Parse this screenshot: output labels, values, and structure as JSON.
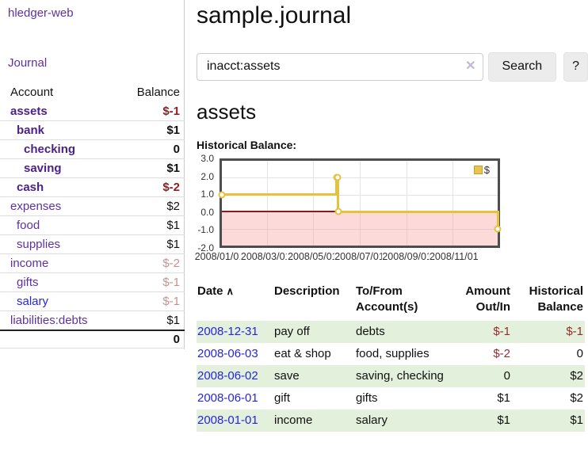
{
  "colors": {
    "link_purple": "#5e31a1",
    "link_purple_bold": "#4c2189",
    "link_blue": "#2626dd",
    "negative_strong": "#8f1f1f",
    "negative_table": "#942d2d",
    "negative_faded": "#c79090",
    "row_green": "#e2f0dc",
    "series_gold": "#e6c13c",
    "negative_region_pink": "#fbdbd9",
    "zero_line_red": "#8b1c1c",
    "chart_border": "#4d4d4d"
  },
  "sidebar": {
    "app_title": "hledger-web",
    "nav": [
      {
        "label": "Journal"
      }
    ],
    "accounts_table": {
      "headers": {
        "account": "Account",
        "balance": "Balance"
      },
      "rows": [
        {
          "name": "assets",
          "balance": "$-1",
          "indent": 1,
          "bold": true,
          "balance_style": "neg-strong"
        },
        {
          "name": "bank",
          "balance": "$1",
          "indent": 2,
          "bold": true,
          "balance_style": "pos"
        },
        {
          "name": "checking",
          "balance": "0",
          "indent": 3,
          "bold": true,
          "balance_style": "pos"
        },
        {
          "name": "saving",
          "balance": "$1",
          "indent": 3,
          "bold": true,
          "balance_style": "pos"
        },
        {
          "name": "cash",
          "balance": "$-2",
          "indent": 2,
          "bold": true,
          "balance_style": "neg-strong"
        },
        {
          "name": "expenses",
          "balance": "$2",
          "indent": 1,
          "bold": false,
          "balance_style": "pos"
        },
        {
          "name": "food",
          "balance": "$1",
          "indent": 2,
          "bold": false,
          "balance_style": "pos"
        },
        {
          "name": "supplies",
          "balance": "$1",
          "indent": 2,
          "bold": false,
          "balance_style": "pos"
        },
        {
          "name": "income",
          "balance": "$-2",
          "indent": 1,
          "bold": false,
          "balance_style": "neg-faded"
        },
        {
          "name": "gifts",
          "balance": "$-1",
          "indent": 2,
          "bold": false,
          "balance_style": "neg-faded"
        },
        {
          "name": "salary",
          "balance": "$-1",
          "indent": 2,
          "bold": false,
          "balance_style": "neg-faded",
          "link_color": "blue"
        },
        {
          "name": "liabilities:debts",
          "balance": "$1",
          "indent": 1,
          "bold": false,
          "balance_style": "pos"
        }
      ],
      "total": "0"
    }
  },
  "header": {
    "title": "sample.journal"
  },
  "search": {
    "value": "inacct:assets",
    "clear_icon": "✕",
    "button_label": "Search",
    "help_label": "?"
  },
  "account_page": {
    "title": "assets",
    "chart_label": "Historical Balance:"
  },
  "chart_data": {
    "type": "line",
    "style": "step",
    "title": "Historical Balance",
    "legend": "$",
    "legend_position": "top-right",
    "xlim": [
      "2008-01-01",
      "2008-12-31"
    ],
    "ylim": [
      -2,
      3
    ],
    "y_ticks": [
      {
        "label": "3.0",
        "value": 3
      },
      {
        "label": "2.0",
        "value": 2
      },
      {
        "label": "1.0",
        "value": 1
      },
      {
        "label": "0.0",
        "value": 0
      },
      {
        "label": "-1.0",
        "value": -1
      },
      {
        "label": "-2.0",
        "value": -2
      }
    ],
    "x_ticks": [
      {
        "label": "2008/01/01",
        "date": "2008-01-01"
      },
      {
        "label": "2008/03/01",
        "date": "2008-03-01"
      },
      {
        "label": "2008/05/01",
        "date": "2008-05-01"
      },
      {
        "label": "2008/07/01",
        "date": "2008-07-01"
      },
      {
        "label": "2008/09/01",
        "date": "2008-09-01"
      },
      {
        "label": "2008/11/01",
        "date": "2008-11-01"
      }
    ],
    "series": [
      {
        "name": "$",
        "points": [
          [
            "2008-01-01",
            1
          ],
          [
            "2008-06-01",
            2
          ],
          [
            "2008-06-02",
            2
          ],
          [
            "2008-06-03",
            0
          ],
          [
            "2008-12-31",
            -1
          ]
        ]
      }
    ],
    "grid": true,
    "negative_region_shaded": true,
    "zero_line": true
  },
  "register_table": {
    "headers": [
      {
        "label": "Date",
        "sort_icon": "∧",
        "align": "left"
      },
      {
        "label": "Description",
        "align": "left"
      },
      {
        "label": "To/From Account(s)",
        "align": "left"
      },
      {
        "label": "Amount Out/In",
        "align": "right"
      },
      {
        "label": "Historical Balance",
        "align": "right"
      }
    ],
    "rows": [
      {
        "date": "2008-12-31",
        "description": "pay off",
        "accounts": "debts",
        "amount": "$-1",
        "amount_neg": true,
        "balance": "$-1",
        "balance_neg": true,
        "shaded": true
      },
      {
        "date": "2008-06-03",
        "description": "eat & shop",
        "accounts": "food, supplies",
        "amount": "$-2",
        "amount_neg": true,
        "balance": "0",
        "balance_neg": false,
        "shaded": false
      },
      {
        "date": "2008-06-02",
        "description": "save",
        "accounts": "saving, checking",
        "amount": "0",
        "amount_neg": false,
        "balance": "$2",
        "balance_neg": false,
        "shaded": true
      },
      {
        "date": "2008-06-01",
        "description": "gift",
        "accounts": "gifts",
        "amount": "$1",
        "amount_neg": false,
        "balance": "$2",
        "balance_neg": false,
        "shaded": false
      },
      {
        "date": "2008-01-01",
        "description": "income",
        "accounts": "salary",
        "amount": "$1",
        "amount_neg": false,
        "balance": "$1",
        "balance_neg": false,
        "shaded": true
      }
    ]
  }
}
